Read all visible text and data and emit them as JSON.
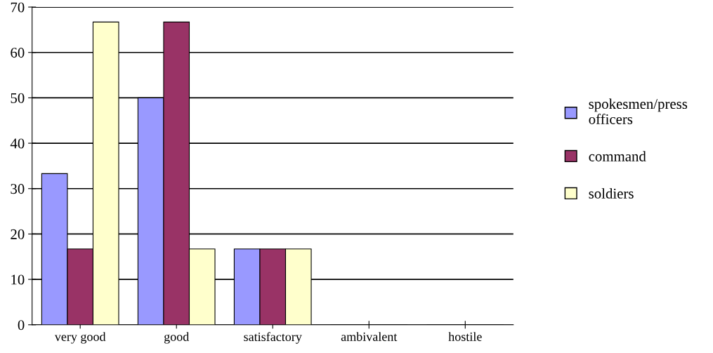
{
  "chart_data": {
    "type": "bar",
    "categories": [
      "very good",
      "good",
      "satisfactory",
      "ambivalent",
      "hostile"
    ],
    "series": [
      {
        "name": "spokesmen/press\nofficers",
        "color": "#9999ff",
        "values": [
          33.3,
          50,
          16.7,
          0,
          0
        ]
      },
      {
        "name": "command",
        "color": "#993366",
        "values": [
          16.7,
          66.7,
          16.7,
          0,
          0
        ]
      },
      {
        "name": "soldiers",
        "color": "#ffffcc",
        "values": [
          66.7,
          16.7,
          16.7,
          0,
          0
        ]
      }
    ],
    "ylim": [
      0,
      70
    ],
    "yticks": [
      0,
      10,
      20,
      30,
      40,
      50,
      60,
      70
    ],
    "grid": "y",
    "legend": "right"
  }
}
